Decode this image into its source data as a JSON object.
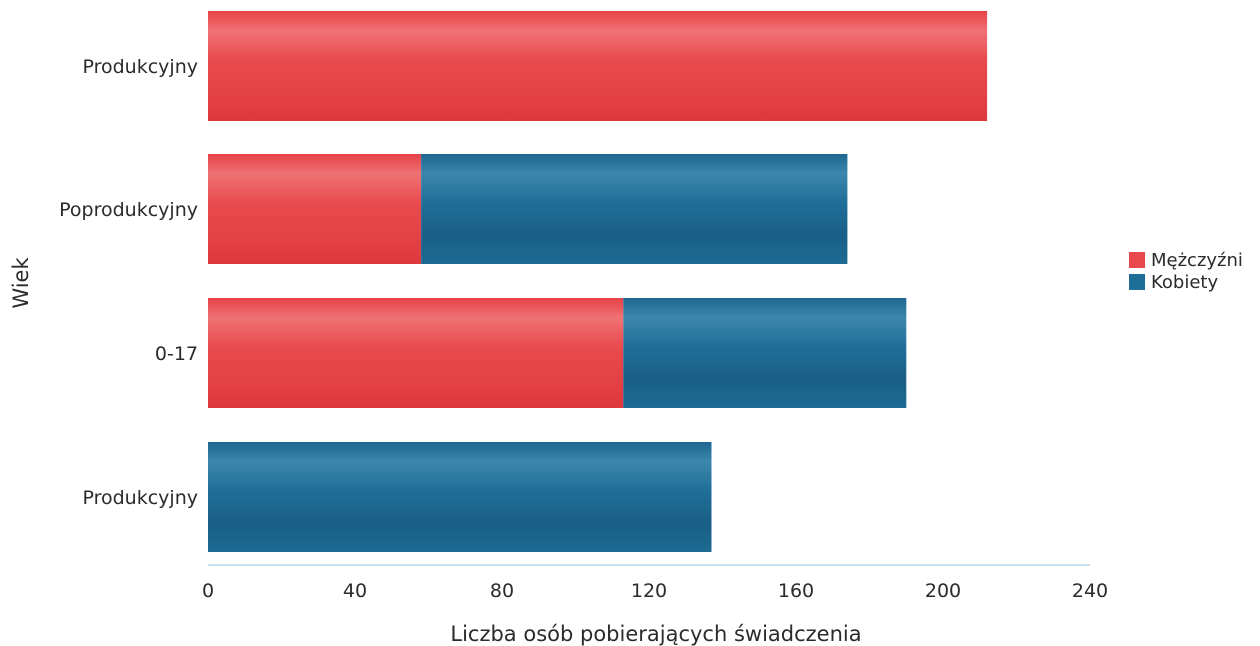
{
  "chart_data": {
    "type": "bar",
    "orientation": "horizontal",
    "stacked": true,
    "categories": [
      "Produkcyjny",
      "Poprodukcyjny",
      "0-17",
      "Produkcyjny"
    ],
    "series": [
      {
        "name": "Mężczyźni",
        "color": "#e8484c",
        "values": [
          212,
          58,
          113,
          0
        ]
      },
      {
        "name": "Kobiety",
        "color": "#1f6e98",
        "values": [
          0,
          116,
          77,
          137
        ]
      }
    ],
    "xlabel": "Liczba osób pobierających świadczenia",
    "ylabel": "Wiek",
    "xlim": [
      0,
      240
    ],
    "xticks": [
      0,
      40,
      80,
      120,
      160,
      200,
      240
    ],
    "grid": false,
    "legend": "right"
  }
}
